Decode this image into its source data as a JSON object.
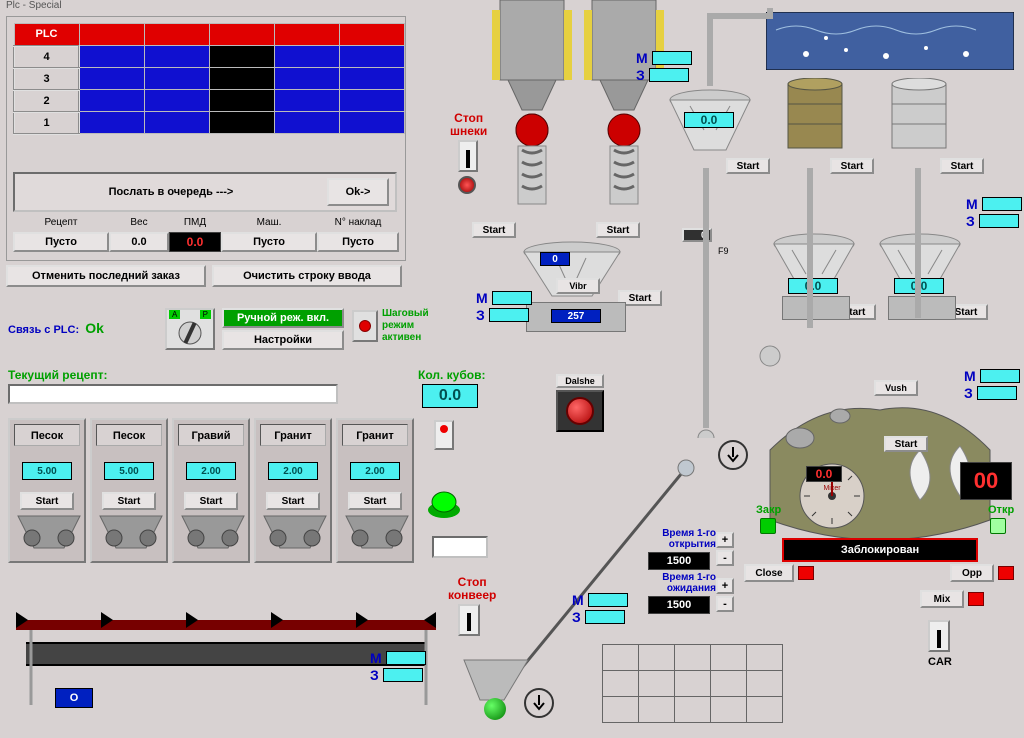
{
  "window_title": "Plc - Special",
  "plc_header": "PLC",
  "queue_instruction": "Послать в очередь  --->",
  "ok_btn": "Ok->",
  "col_headers": {
    "recipe": "Рецепт",
    "weight": "Вес",
    "pmd": "ПМД",
    "mash": "Маш.",
    "invoice": "N° наклад"
  },
  "row_vals": {
    "recipe": "Пусто",
    "weight": "0.0",
    "pmd": "0.0",
    "mash": "Пусто",
    "invoice": "Пусто"
  },
  "cancel_last": "Отменить последний заказ",
  "clear_input": "Очистить строку ввода",
  "plc_link": "Связь с PLC:",
  "plc_ok": "Ok",
  "manual_mode": "Ручной реж. вкл.",
  "settings": "Настройки",
  "step_mode1": "Шаговый",
  "step_mode2": "режим",
  "step_mode3": "активен",
  "A_label": "A",
  "P_label": "P",
  "current_recipe": "Текущий рецепт:",
  "cube_count": "Кол. кубов:",
  "cube_val": "0.0",
  "aggregates": [
    {
      "name": "Песок",
      "val": "5.00"
    },
    {
      "name": "Песок",
      "val": "5.00"
    },
    {
      "name": "Гравий",
      "val": "2.00"
    },
    {
      "name": "Гранит",
      "val": "2.00"
    },
    {
      "name": "Гранит",
      "val": "2.00"
    }
  ],
  "start_label": "Start",
  "stop_screw": "Стоп\nшнеки",
  "stop_conv": "Стоп\nконвеер",
  "vibr": "Vibr",
  "dalshe": "Dalshe",
  "vush": "Vush",
  "F9": "F9",
  "zero": "0",
  "zakr": "Закр",
  "otkr": "Откр",
  "blocked": "Заблокирован",
  "close": "Close",
  "opp": "Opp",
  "mix": "Mix",
  "car": "CAR",
  "M": "М",
  "Z": "З",
  "mixer_label": "Mixer",
  "open_time": "Время 1-го открытия",
  "wait_time": "Время 1-го ожидания",
  "t1500": "1500",
  "plus": "+",
  "minus": "-",
  "val0_0": "0.0",
  "val00": "00",
  "val257": "257",
  "O_label": "O",
  "row_idx": [
    "4",
    "3",
    "2",
    "1"
  ]
}
